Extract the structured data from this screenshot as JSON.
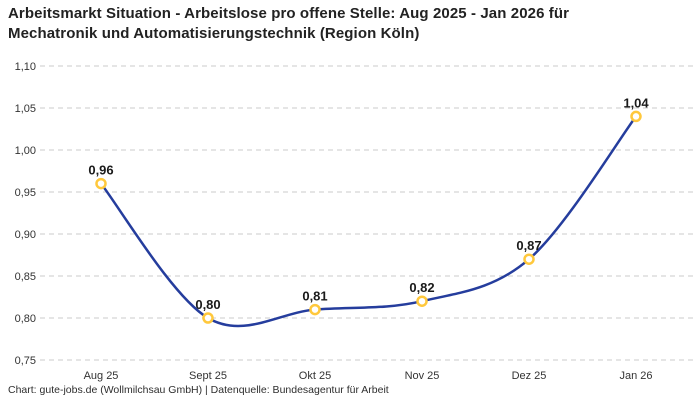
{
  "title": {
    "line1": "Arbeitsmarkt Situation - Arbeitslose pro offene Stelle: Aug 2025 - Jan 2026 für",
    "line2": "Mechatronik und Automatisierungstechnik (Region Köln)"
  },
  "footer": "Chart: gute-jobs.de (Wollmilchsau GmbH) | Datenquelle: Bundesagentur für Arbeit",
  "chart_data": {
    "type": "line",
    "title": "Arbeitsmarkt Situation - Arbeitslose pro offene Stelle: Aug 2025 - Jan 2026 für Mechatronik und Automatisierungstechnik (Region Köln)",
    "categories": [
      "Aug 25",
      "Sept 25",
      "Okt 25",
      "Nov 25",
      "Dez 25",
      "Jan 26"
    ],
    "values": [
      0.96,
      0.8,
      0.81,
      0.82,
      0.87,
      1.04
    ],
    "value_labels": [
      "0,96",
      "0,80",
      "0,81",
      "0,82",
      "0,87",
      "1,04"
    ],
    "xlabel": "",
    "ylabel": "",
    "ylim": [
      0.75,
      1.1
    ],
    "y_ticks": [
      0.75,
      0.8,
      0.85,
      0.9,
      0.95,
      1.0,
      1.05,
      1.1
    ],
    "y_tick_labels": [
      "0,75",
      "0,80",
      "0,85",
      "0,90",
      "0,95",
      "1,00",
      "1,05",
      "1,10"
    ],
    "grid": "horizontal-dashed",
    "legend": "none",
    "line_color": "#253D9D",
    "marker_stroke_color": "#FFC83C",
    "marker_fill_color": "#FFFFFF",
    "grid_color": "#CBCBCB"
  }
}
